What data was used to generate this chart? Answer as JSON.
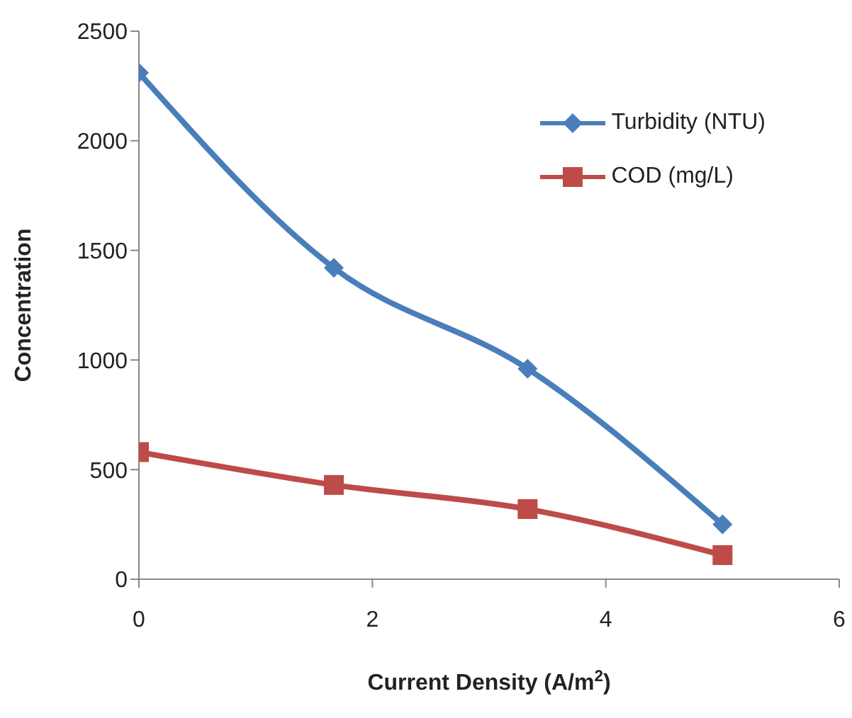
{
  "chart_data": {
    "type": "line",
    "xlabel": "Current Density (A/m$^{2}$)",
    "ylabel": "Concentration",
    "x": [
      0,
      1.67,
      3.33,
      5
    ],
    "series": [
      {
        "name": "Turbidity (NTU)",
        "color": "#4a7ebb",
        "values": [
          2310,
          1420,
          960,
          250
        ],
        "marker": "diamond"
      },
      {
        "name": "COD (mg/L)",
        "color": "#be4b48",
        "values": [
          580,
          430,
          320,
          110
        ],
        "marker": "square"
      }
    ],
    "xlim": [
      0,
      6
    ],
    "xticks": [
      0,
      2,
      4,
      6
    ],
    "ylim": [
      0,
      2500
    ],
    "yticks": [
      0,
      500,
      1000,
      1500,
      2000,
      2500
    ],
    "grid": false,
    "legend": "top right",
    "line_style": "solid"
  }
}
